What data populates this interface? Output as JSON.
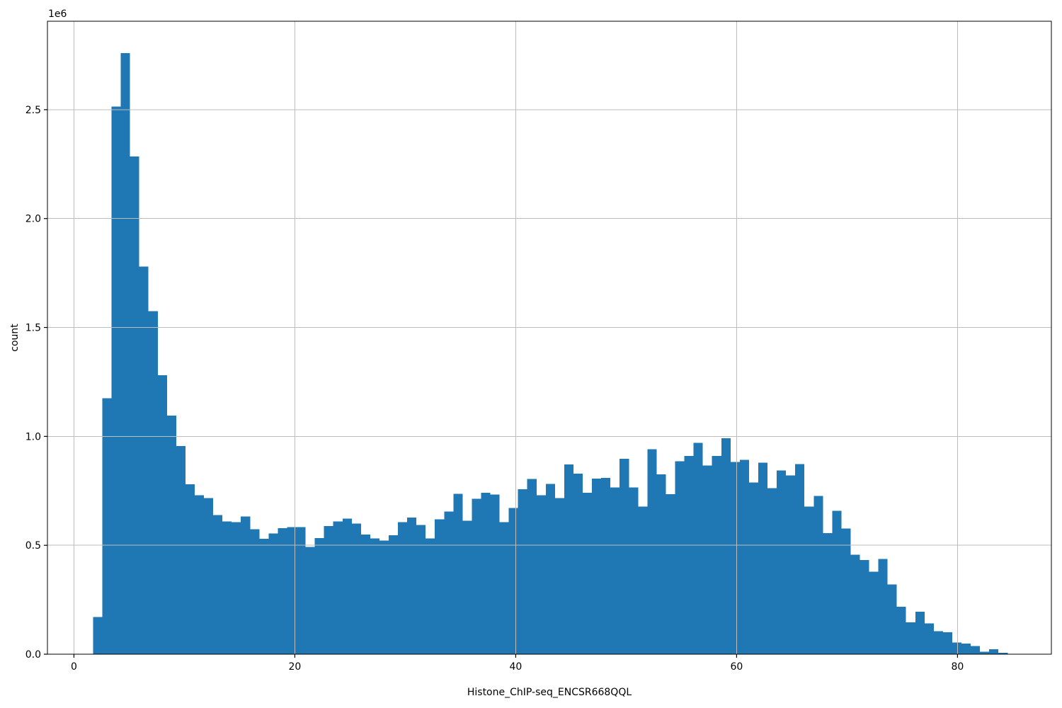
{
  "figure": {
    "background": "#ffffff"
  },
  "chart_data": {
    "type": "histogram",
    "title": "",
    "xlabel": "Histone_ChIP-seq_ENCSR668QQL",
    "ylabel": "count",
    "offset_text": "1e6",
    "bar_color": "#1f77b4",
    "grid": true,
    "grid_color": "#bdbdbd",
    "spine_color": "#000000",
    "legend": "none",
    "xlim": [
      -2.4,
      88.5
    ],
    "ylim": [
      0,
      2906000
    ],
    "xticks": [
      {
        "value": 0,
        "label": "0"
      },
      {
        "value": 20,
        "label": "20"
      },
      {
        "value": 40,
        "label": "40"
      },
      {
        "value": 60,
        "label": "60"
      },
      {
        "value": 80,
        "label": "80"
      }
    ],
    "yticks": [
      {
        "value": 0,
        "label": "0.0"
      },
      {
        "value": 500000,
        "label": "0.5"
      },
      {
        "value": 1000000,
        "label": "1.0"
      },
      {
        "value": 1500000,
        "label": "1.5"
      },
      {
        "value": 2000000,
        "label": "2.0"
      },
      {
        "value": 2500000,
        "label": "2.5"
      }
    ],
    "bins": {
      "start": 1.73,
      "width": 0.8365
    },
    "counts": [
      170000,
      1175000,
      2515000,
      2760000,
      2285000,
      1780000,
      1575000,
      1280000,
      1095000,
      955000,
      780000,
      729000,
      716000,
      639000,
      610000,
      607000,
      632000,
      573000,
      530000,
      555000,
      579000,
      584000,
      584000,
      492000,
      533000,
      589000,
      609000,
      622000,
      600000,
      550000,
      531000,
      521000,
      546000,
      606000,
      628000,
      594000,
      531000,
      620000,
      655000,
      737000,
      613000,
      713000,
      741000,
      733000,
      607000,
      672000,
      757000,
      804000,
      730000,
      782000,
      717000,
      871000,
      829000,
      741000,
      806000,
      810000,
      765000,
      897000,
      765000,
      677000,
      941000,
      825000,
      734000,
      885000,
      910000,
      971000,
      866000,
      910000,
      991000,
      882000,
      892000,
      788000,
      879000,
      762000,
      843000,
      821000,
      872000,
      677000,
      726000,
      556000,
      659000,
      577000,
      457000,
      433000,
      378000,
      438000,
      320000,
      217000,
      146000,
      195000,
      141000,
      105000,
      100000,
      53000,
      48000,
      37000,
      12000,
      22000,
      6000
    ]
  }
}
